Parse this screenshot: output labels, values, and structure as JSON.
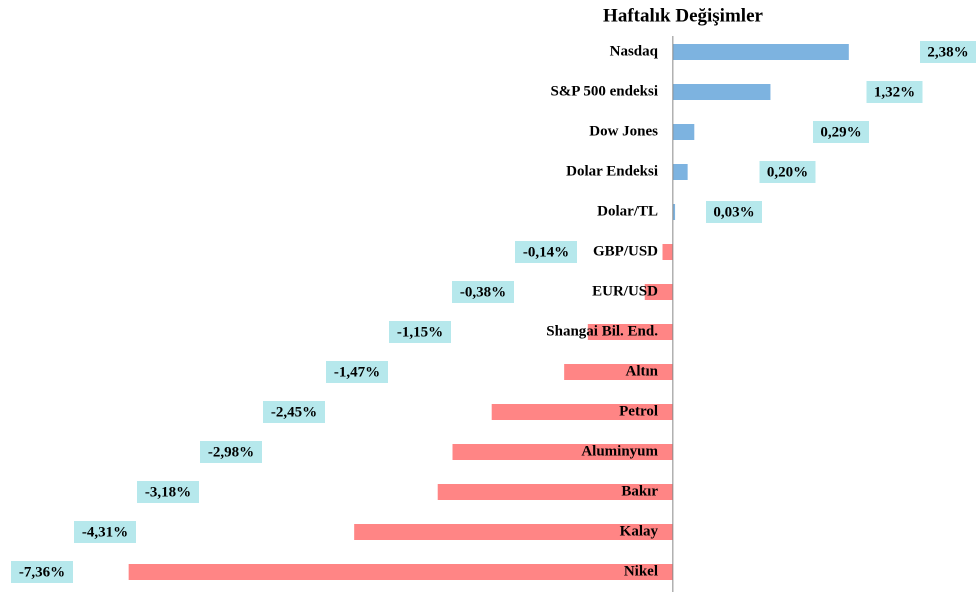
{
  "chart_data": {
    "type": "barh",
    "title": "Haftalık Değişimler",
    "categories": [
      "Nasdaq",
      "S&P 500 endeksi",
      "Dow Jones",
      "Dolar Endeksi",
      "Dolar/TL",
      "GBP/USD",
      "EUR/USD",
      "Shangai Bil. End.",
      "Altın",
      "Petrol",
      "Aluminyum",
      "Bakır",
      "Kalay",
      "Nikel"
    ],
    "values": [
      2.38,
      1.32,
      0.29,
      0.2,
      0.03,
      -0.14,
      -0.38,
      -1.15,
      -1.47,
      -2.45,
      -2.98,
      -3.18,
      -4.31,
      -7.36
    ],
    "value_labels": [
      "2,38%",
      "1,32%",
      "0,29%",
      "0,20%",
      "0,03%",
      "-0,14%",
      "-0,38%",
      "-1,15%",
      "-1,47%",
      "-2,45%",
      "-2,98%",
      "-3,18%",
      "-4,31%",
      "-7,36%"
    ],
    "color_positive": "#7db3e0",
    "color_negative": "#ff8585",
    "label_box_color": "#b6e8ec",
    "xlim": [
      -9.1,
      4.1
    ]
  }
}
